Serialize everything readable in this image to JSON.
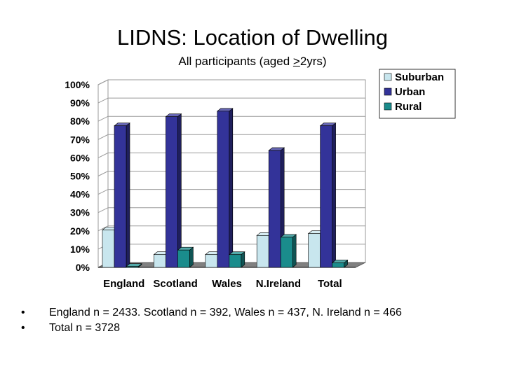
{
  "slide": {
    "title": "LIDNS: Location of Dwelling",
    "subtitle_pre": "All participants (aged ",
    "subtitle_gte": ">",
    "subtitle_post": "2yrs)"
  },
  "notes": [
    "England n = 2433. Scotland n = 392, Wales n = 437, N. Ireland n = 466",
    "Total n = 3728"
  ],
  "bullet_glyph": "•",
  "colors": {
    "suburban": "#c8e6ee",
    "urban": "#333399",
    "rural": "#1a8c8c",
    "floor": "#808080",
    "grid": "#9a9a9a"
  },
  "chart_data": {
    "type": "bar",
    "categories": [
      "England",
      "Scotland",
      "Wales",
      "N.Ireland",
      "Total"
    ],
    "series": [
      {
        "name": "Suburban",
        "values": [
          20.5,
          7,
          7,
          17.5,
          18.5
        ]
      },
      {
        "name": "Urban",
        "values": [
          77.5,
          82.5,
          85.5,
          64,
          77.5
        ]
      },
      {
        "name": "Rural",
        "values": [
          0.5,
          9.5,
          7,
          16.5,
          2.5
        ]
      }
    ],
    "ylim": [
      0,
      100
    ],
    "yticks": [
      "0%",
      "10%",
      "20%",
      "30%",
      "40%",
      "50%",
      "60%",
      "70%",
      "80%",
      "90%",
      "100%"
    ],
    "legend": "top-right",
    "grid": true,
    "style": "3d"
  }
}
